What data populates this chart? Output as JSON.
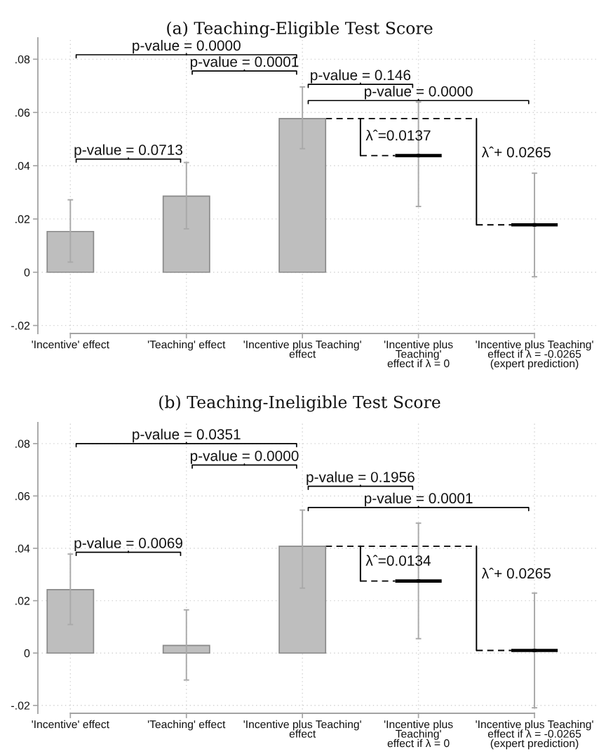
{
  "chart_data": [
    {
      "type": "bar",
      "title": "(a) Teaching-Eligible Test Score",
      "categories": [
        "'Incentive' effect",
        "'Teaching' effect",
        "'Incentive plus Teaching'\neffect",
        "'Incentive plus\nTeaching'\neffect if λ = 0",
        "'Incentive plus Teaching'\neffect if λ = -0.0265\n(expert prediction)"
      ],
      "series": [
        {
          "color": "#bebebe",
          "values": [
            0.0153,
            0.0286,
            0.0577,
            null,
            null
          ],
          "errors": [
            [
              0.0038,
              0.0272
            ],
            [
              0.0163,
              0.0412
            ],
            [
              0.0464,
              0.0696
            ],
            null,
            null
          ]
        },
        {
          "type": "scatter",
          "color": "#000000",
          "marker": "square",
          "values": [
            null,
            null,
            null,
            0.0438,
            0.0178
          ],
          "errors": [
            null,
            null,
            null,
            [
              0.0247,
              0.0639
            ],
            [
              -0.0017,
              0.0372
            ]
          ]
        }
      ],
      "ylim": [
        -0.023,
        0.088
      ],
      "yticks": [
        {
          "value": -0.02,
          "label": "-.02"
        },
        0,
        {
          "value": 0.02,
          "label": ".02"
        },
        {
          "value": 0.04,
          "label": ".04"
        },
        {
          "value": 0.06,
          "label": ".06"
        },
        {
          "value": 0.08,
          "label": ".08"
        }
      ],
      "grid": true,
      "annotations": [
        "p-value = 0.0000",
        "p-value = 0.0001",
        "p-value = 0.146",
        "p-value = 0.0000",
        "p-value = 0.0713",
        "λˆ=0.0137",
        "λˆ+ 0.0265"
      ]
    },
    {
      "type": "bar",
      "title": "(b) Teaching-Ineligible Test Score",
      "categories": [
        "'Incentive' effect",
        "'Teaching' effect",
        "'Incentive plus Teaching'\neffect",
        "'Incentive plus\nTeaching'\neffect if λ = 0",
        "'Incentive plus Teaching'\neffect if λ = -0.0265\n(expert prediction)"
      ],
      "series": [
        {
          "color": "#bebebe",
          "values": [
            0.0242,
            0.0029,
            0.0408,
            null,
            null
          ],
          "errors": [
            [
              0.0109,
              0.0378
            ],
            [
              -0.0103,
              0.0165
            ],
            [
              0.0248,
              0.0546
            ],
            null,
            null
          ]
        },
        {
          "type": "scatter",
          "color": "#000000",
          "marker": "square",
          "values": [
            null,
            null,
            null,
            0.0275,
            0.001
          ],
          "errors": [
            null,
            null,
            null,
            [
              0.0055,
              0.0496
            ],
            [
              -0.0209,
              0.0229
            ]
          ]
        }
      ],
      "ylim": [
        -0.023,
        0.088
      ],
      "yticks": [
        {
          "value": -0.02,
          "label": "-.02"
        },
        0,
        {
          "value": 0.02,
          "label": ".02"
        },
        {
          "value": 0.04,
          "label": ".04"
        },
        {
          "value": 0.06,
          "label": ".06"
        },
        {
          "value": 0.08,
          "label": ".08"
        }
      ],
      "grid": true,
      "annotations": [
        "p-value = 0.0351",
        "p-value = 0.0000",
        "p-value = 0.1956",
        "p-value = 0.0001",
        "p-value = 0.0069",
        "λˆ=0.0134",
        "λˆ+ 0.0265"
      ]
    }
  ]
}
